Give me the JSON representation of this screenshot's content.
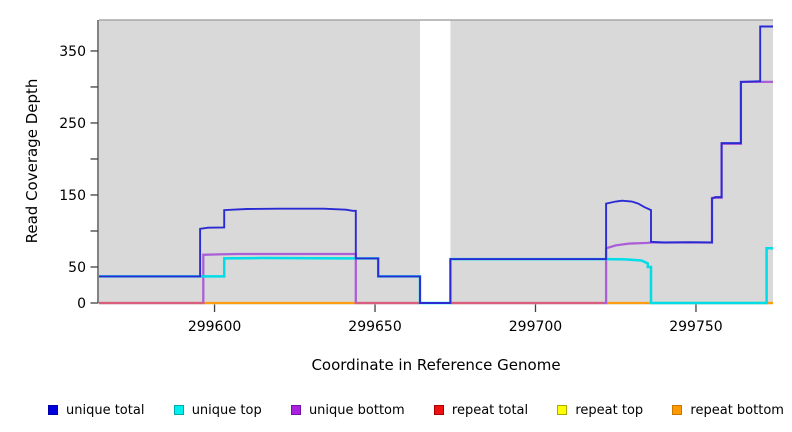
{
  "chart_data": {
    "type": "line",
    "title": "",
    "xlabel": "Coordinate in Reference Genome",
    "ylabel": "Read Coverage Depth",
    "plot_bg_color": "#d9d9d9",
    "gap_color": "#ffffff",
    "x_domain": [
      299564,
      299774
    ],
    "y_domain": [
      0,
      393
    ],
    "x_ticks": [
      299600,
      299650,
      299700,
      299750
    ],
    "y_ticks": [
      {
        "v": 0,
        "label": "0"
      },
      {
        "v": 50,
        "label": "50"
      },
      {
        "v": 100,
        "label": ""
      },
      {
        "v": 150,
        "label": "150"
      },
      {
        "v": 200,
        "label": ""
      },
      {
        "v": 250,
        "label": "250"
      },
      {
        "v": 300,
        "label": ""
      },
      {
        "v": 350,
        "label": "350"
      }
    ],
    "gap_region": {
      "x_start": 299664,
      "x_end": 299673.5
    },
    "series": [
      {
        "name": "repeat top",
        "color": "#f2f200",
        "width": 2,
        "points": [
          [
            299564,
            0
          ],
          [
            299664,
            0
          ],
          null,
          [
            299673.5,
            0
          ],
          [
            299774,
            0
          ]
        ]
      },
      {
        "name": "repeat bottom",
        "color": "#ff9d12",
        "width": 2.2,
        "points": [
          [
            299564,
            0
          ],
          [
            299664,
            0
          ],
          null,
          [
            299673.5,
            0
          ],
          [
            299774,
            0
          ]
        ]
      },
      {
        "name": "unique bottom",
        "color": "#aa5fd8",
        "width": 2.3,
        "points": [
          [
            299564,
            0
          ],
          [
            299596.5,
            0
          ],
          [
            299596.5,
            67
          ],
          [
            299601,
            67.5
          ],
          [
            299607,
            68
          ],
          [
            299644,
            68
          ],
          [
            299644,
            0
          ],
          [
            299664,
            0
          ],
          null,
          [
            299673.5,
            0
          ],
          [
            299722,
            0
          ],
          [
            299722,
            76
          ],
          [
            299725,
            80
          ],
          [
            299729,
            82.5
          ],
          [
            299735,
            83.5
          ],
          [
            299736,
            84
          ],
          [
            299755,
            84
          ],
          [
            299755,
            146
          ],
          [
            299758,
            146
          ],
          [
            299758,
            221
          ],
          [
            299764,
            221
          ],
          [
            299764,
            307
          ],
          [
            299774,
            307
          ]
        ]
      },
      {
        "name": "repeat total",
        "color": "#d95d7c",
        "width": 2,
        "points": [
          [
            299564,
            0
          ],
          [
            299596.5,
            0
          ],
          null,
          [
            299644,
            0
          ],
          [
            299664,
            0
          ],
          null,
          [
            299673.5,
            0
          ],
          [
            299721,
            0
          ]
        ]
      },
      {
        "name": "unique top",
        "color": "#00dce8",
        "width": 2.5,
        "points": [
          [
            299564,
            37
          ],
          [
            299603,
            37
          ],
          [
            299603,
            62
          ],
          [
            299615,
            62.5
          ],
          [
            299640,
            62
          ],
          [
            299651,
            62
          ],
          [
            299651,
            37
          ],
          [
            299664,
            37
          ],
          [
            299664,
            0
          ],
          [
            299673.5,
            0
          ],
          [
            299673.5,
            61
          ],
          [
            299700,
            61
          ],
          [
            299722,
            61
          ],
          [
            299728,
            60.5
          ],
          [
            299733,
            59
          ],
          [
            299735,
            55
          ],
          [
            299735,
            50
          ],
          [
            299736,
            50
          ],
          [
            299736,
            0
          ],
          [
            299772,
            0
          ],
          [
            299772,
            76
          ],
          [
            299774,
            76
          ]
        ]
      },
      {
        "name": "unique total",
        "color": "#2b2bd4",
        "width": 1.9,
        "points": [
          [
            299564,
            37
          ],
          [
            299595.5,
            37
          ],
          [
            299595.5,
            103
          ],
          [
            299598,
            104.5
          ],
          [
            299603,
            105
          ],
          [
            299603,
            129
          ],
          [
            299610,
            130.5
          ],
          [
            299620,
            131
          ],
          [
            299634,
            131
          ],
          [
            299641,
            129.5
          ],
          [
            299643,
            128
          ],
          [
            299644,
            128
          ],
          [
            299644,
            62
          ],
          [
            299651,
            62
          ],
          [
            299651,
            37
          ],
          [
            299664,
            37
          ],
          [
            299664,
            0
          ],
          [
            299673.5,
            0
          ],
          [
            299673.5,
            61
          ],
          [
            299722,
            61
          ],
          [
            299722,
            138
          ],
          [
            299725,
            141
          ],
          [
            299727,
            142
          ],
          [
            299730,
            141
          ],
          [
            299732,
            138
          ],
          [
            299734,
            133
          ],
          [
            299735.5,
            130
          ],
          [
            299736,
            129
          ],
          [
            299736,
            85
          ],
          [
            299740,
            84
          ],
          [
            299748,
            84.5
          ],
          [
            299755,
            84
          ],
          [
            299755,
            145
          ],
          [
            299756,
            147
          ],
          [
            299758,
            147
          ],
          [
            299758,
            222
          ],
          [
            299764,
            222
          ],
          [
            299764,
            307
          ],
          [
            299767,
            307.5
          ],
          [
            299770,
            308
          ],
          [
            299770,
            384
          ],
          [
            299774,
            384
          ]
        ]
      }
    ],
    "legend": [
      {
        "label": "unique total",
        "color": "#0000dd",
        "border": "#0000aa"
      },
      {
        "label": "unique top",
        "color": "#00eeee",
        "border": "#00aaaa"
      },
      {
        "label": "unique bottom",
        "color": "#aa22dd",
        "border": "#7711aa"
      },
      {
        "label": "repeat total",
        "color": "#ee1111",
        "border": "#aa0000"
      },
      {
        "label": "repeat top",
        "color": "#ffff00",
        "border": "#aaaa00"
      },
      {
        "label": "repeat bottom",
        "color": "#ff9900",
        "border": "#cc7700"
      }
    ],
    "axis_color": "#404040",
    "top_border_color": "#a8a8a8",
    "legend_position": "bottom",
    "grid": false
  }
}
